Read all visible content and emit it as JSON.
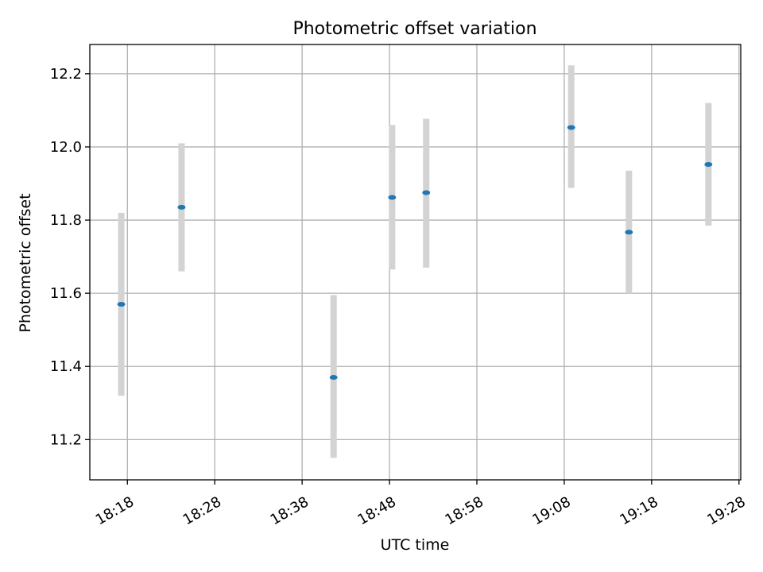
{
  "chart_data": {
    "type": "scatter",
    "title": "Photometric offset variation",
    "xlabel": "UTC time",
    "ylabel": "Photometric offset",
    "grid": true,
    "x_ticks": [
      "18:18",
      "18:28",
      "18:38",
      "18:48",
      "18:58",
      "19:08",
      "19:18",
      "19:28"
    ],
    "x_tick_minutes": [
      0,
      10,
      20,
      30,
      40,
      50,
      60,
      70
    ],
    "xlim_minutes": [
      -4.3,
      70.2
    ],
    "y_ticks": [
      "11.2",
      "11.4",
      "11.6",
      "11.8",
      "12.0",
      "12.2"
    ],
    "y_tick_values": [
      11.2,
      11.4,
      11.6,
      11.8,
      12.0,
      12.2
    ],
    "ylim": [
      11.09,
      12.28
    ],
    "series": [
      {
        "x_minutes": [
          -0.7,
          6.2,
          23.6,
          30.3,
          34.2,
          50.8,
          57.4,
          66.5
        ],
        "y": [
          11.57,
          11.835,
          11.37,
          11.862,
          11.875,
          12.053,
          11.767,
          11.952
        ],
        "err_low": [
          11.32,
          11.66,
          11.15,
          11.665,
          11.67,
          11.888,
          11.6,
          11.785
        ],
        "err_high": [
          11.82,
          12.01,
          11.595,
          12.06,
          12.077,
          12.223,
          11.935,
          12.12
        ]
      }
    ],
    "colors": {
      "marker": "#1f77b4",
      "errorbar": "#d3d3d3",
      "grid": "#b0b0b0",
      "axes": "#000000"
    }
  }
}
